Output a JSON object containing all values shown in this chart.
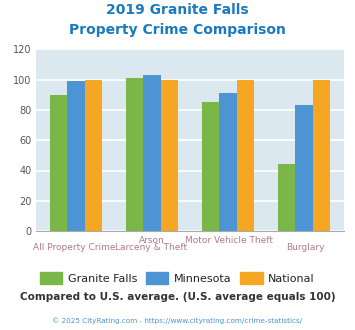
{
  "title_line1": "2019 Granite Falls",
  "title_line2": "Property Crime Comparison",
  "title_color": "#1a7abf",
  "categories_top": [
    "",
    "Arson",
    "Motor Vehicle Theft",
    ""
  ],
  "categories_bot": [
    "All Property Crime",
    "Larceny & Theft",
    "",
    "Burglary"
  ],
  "series": {
    "Granite Falls": [
      90,
      101,
      85,
      44
    ],
    "Minnesota": [
      99,
      103,
      91,
      83
    ],
    "National": [
      100,
      100,
      100,
      100
    ]
  },
  "colors": {
    "Granite Falls": "#7ab648",
    "Minnesota": "#4d94d4",
    "National": "#f5a623"
  },
  "ylim": [
    0,
    120
  ],
  "yticks": [
    0,
    20,
    40,
    60,
    80,
    100,
    120
  ],
  "bg_color": "#dce8f0",
  "grid_color": "#ffffff",
  "footer_text": "Compared to U.S. average. (U.S. average equals 100)",
  "footer_color": "#333333",
  "copyright_text": "© 2025 CityRating.com - https://www.cityrating.com/crime-statistics/",
  "copyright_color": "#4d94d4",
  "xlabel_color": "#b07a8a",
  "legend_text_color": "#222222"
}
